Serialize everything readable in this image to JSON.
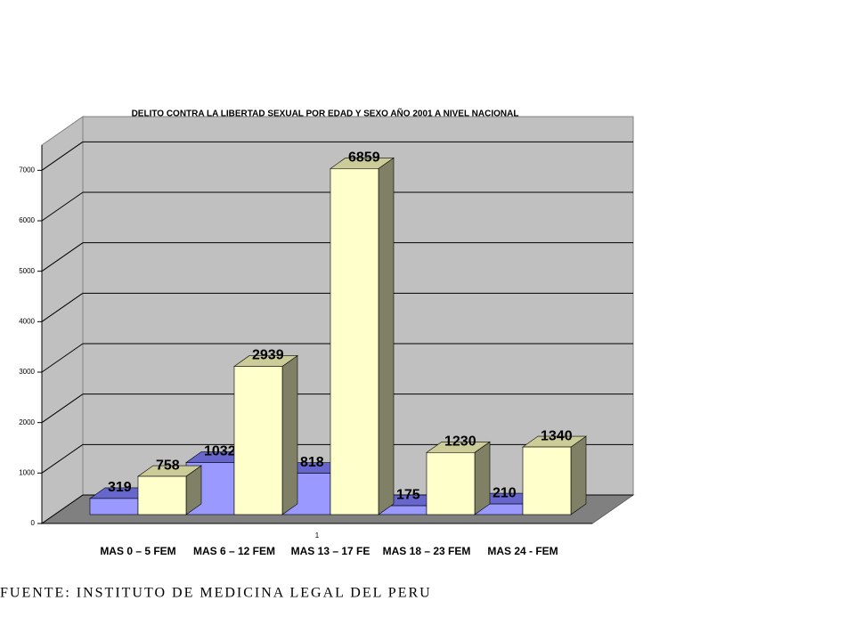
{
  "chart_data": {
    "type": "bar3d",
    "title": "DELITO CONTRA LA LIBERTAD SEXUAL POR EDAD Y SEXO  AÑO 2001 A NIVEL NACIONAL",
    "categories": [
      "MAS 0 – 5 FEM",
      "MAS 6 – 12 FEM",
      "MAS 13 – 17 FE",
      "MAS 18 – 23 FEM",
      "MAS 24 -     FEM"
    ],
    "xlabel": "1",
    "series": [
      {
        "color": "#9999ff",
        "values": [
          319,
          1032,
          818,
          175,
          210
        ]
      },
      {
        "color": "#ffffcc",
        "values": [
          758,
          2939,
          6859,
          1230,
          1340
        ]
      }
    ],
    "ylim": [
      0,
      7500
    ],
    "yticks": [
      0,
      1000,
      2000,
      3000,
      4000,
      5000,
      6000,
      7000
    ],
    "grid": true,
    "source": "FUENTE: INSTITUTO DE MEDICINA LEGAL DEL PERU"
  }
}
